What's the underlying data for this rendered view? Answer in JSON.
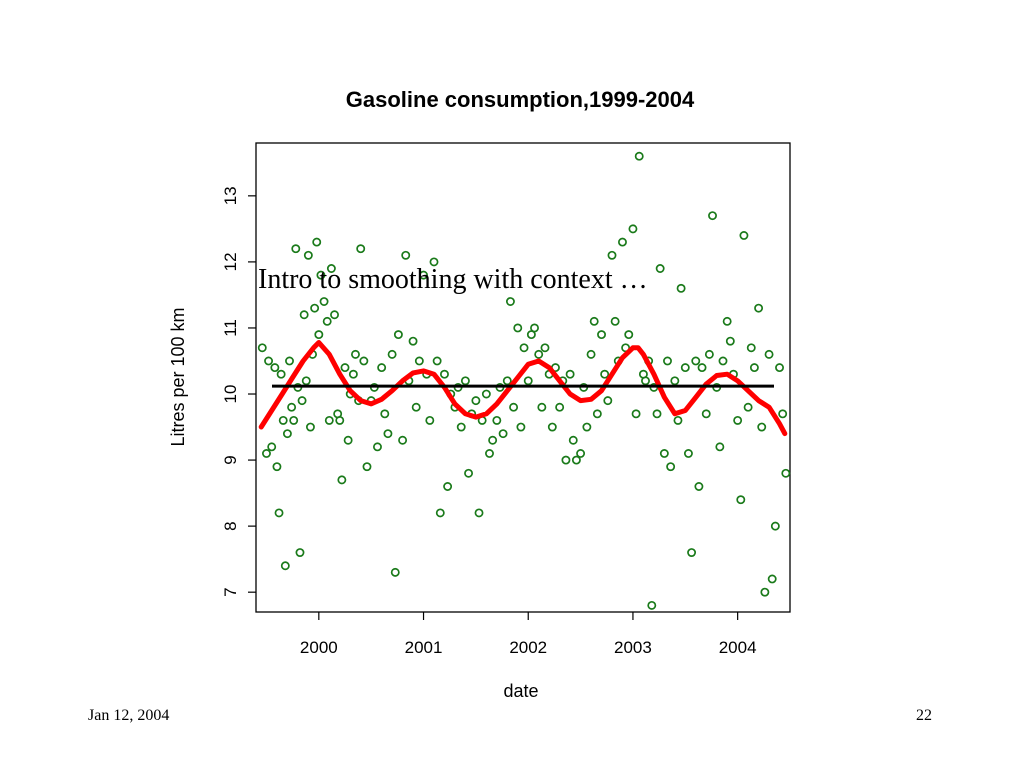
{
  "slide": {
    "title": "Intro to smoothing with context …",
    "footer_date": "Jan 12, 2004",
    "page_number": "22"
  },
  "chart_data": {
    "type": "scatter",
    "title": "Gasoline consumption,1999-2004",
    "xlabel": "date",
    "ylabel": "Litres per 100 km",
    "xlim": [
      1999.4,
      2004.5
    ],
    "ylim": [
      6.7,
      13.8
    ],
    "x_ticks": [
      2000,
      2001,
      2002,
      2003,
      2004
    ],
    "x_tick_labels": [
      "2000",
      "2001",
      "2002",
      "2003",
      "2004"
    ],
    "y_ticks": [
      7,
      8,
      9,
      10,
      11,
      12,
      13
    ],
    "y_tick_labels": [
      "7",
      "8",
      "9",
      "10",
      "11",
      "12",
      "13"
    ],
    "grid": false,
    "colors": {
      "points": "#1a7a1a",
      "smooth": "#ff0000",
      "mean": "#000000"
    },
    "series": [
      {
        "kind": "points",
        "x": [
          1999.46,
          1999.5,
          1999.52,
          1999.55,
          1999.58,
          1999.6,
          1999.62,
          1999.64,
          1999.66,
          1999.68,
          1999.7,
          1999.72,
          1999.74,
          1999.76,
          1999.78,
          1999.8,
          1999.82,
          1999.84,
          1999.86,
          1999.88,
          1999.9,
          1999.92,
          1999.94,
          1999.96,
          1999.98,
          2000.0,
          2000.02,
          2000.05,
          2000.08,
          2000.1,
          2000.12,
          2000.15,
          2000.18,
          2000.2,
          2000.22,
          2000.25,
          2000.28,
          2000.3,
          2000.33,
          2000.35,
          2000.38,
          2000.4,
          2000.43,
          2000.46,
          2000.5,
          2000.53,
          2000.56,
          2000.6,
          2000.63,
          2000.66,
          2000.7,
          2000.73,
          2000.76,
          2000.8,
          2000.83,
          2000.86,
          2000.9,
          2000.93,
          2000.96,
          2001.0,
          2001.03,
          2001.06,
          2001.1,
          2001.13,
          2001.16,
          2001.2,
          2001.23,
          2001.26,
          2001.3,
          2001.33,
          2001.36,
          2001.4,
          2001.43,
          2001.46,
          2001.5,
          2001.53,
          2001.56,
          2001.6,
          2001.63,
          2001.66,
          2001.7,
          2001.73,
          2001.76,
          2001.8,
          2001.83,
          2001.86,
          2001.9,
          2001.93,
          2001.96,
          2002.0,
          2002.03,
          2002.06,
          2002.1,
          2002.13,
          2002.16,
          2002.2,
          2002.23,
          2002.26,
          2002.3,
          2002.33,
          2002.36,
          2002.4,
          2002.43,
          2002.46,
          2002.5,
          2002.53,
          2002.56,
          2002.6,
          2002.63,
          2002.66,
          2002.7,
          2002.73,
          2002.76,
          2002.8,
          2002.83,
          2002.86,
          2002.9,
          2002.93,
          2002.96,
          2003.0,
          2003.03,
          2003.06,
          2003.1,
          2003.12,
          2003.15,
          2003.18,
          2003.2,
          2003.23,
          2003.26,
          2003.3,
          2003.33,
          2003.36,
          2003.4,
          2003.43,
          2003.46,
          2003.5,
          2003.53,
          2003.56,
          2003.6,
          2003.63,
          2003.66,
          2003.7,
          2003.73,
          2003.76,
          2003.8,
          2003.83,
          2003.86,
          2003.9,
          2003.93,
          2003.96,
          2004.0,
          2004.03,
          2004.06,
          2004.1,
          2004.13,
          2004.16,
          2004.2,
          2004.23,
          2004.26,
          2004.3,
          2004.33,
          2004.36,
          2004.4,
          2004.43,
          2004.46
        ],
        "y": [
          10.7,
          9.1,
          10.5,
          9.2,
          10.4,
          8.9,
          8.2,
          10.3,
          9.6,
          7.4,
          9.4,
          10.5,
          9.8,
          9.6,
          12.2,
          10.1,
          7.6,
          9.9,
          11.2,
          10.2,
          12.1,
          9.5,
          10.6,
          11.3,
          12.3,
          10.9,
          11.8,
          11.4,
          11.1,
          9.6,
          11.9,
          11.2,
          9.7,
          9.6,
          8.7,
          10.4,
          9.3,
          10.0,
          10.3,
          10.6,
          9.9,
          12.2,
          10.5,
          8.9,
          9.9,
          10.1,
          9.2,
          10.4,
          9.7,
          9.4,
          10.6,
          7.3,
          10.9,
          9.3,
          12.1,
          10.2,
          10.8,
          9.8,
          10.5,
          11.8,
          10.3,
          9.6,
          12.0,
          10.5,
          8.2,
          10.3,
          8.6,
          10.0,
          9.8,
          10.1,
          9.5,
          10.2,
          8.8,
          9.7,
          9.9,
          8.2,
          9.6,
          10.0,
          9.1,
          9.3,
          9.6,
          10.1,
          9.4,
          10.2,
          11.4,
          9.8,
          11.0,
          9.5,
          10.7,
          10.2,
          10.9,
          11.0,
          10.6,
          9.8,
          10.7,
          10.3,
          9.5,
          10.4,
          9.8,
          10.2,
          9.0,
          10.3,
          9.3,
          9.0,
          9.1,
          10.1,
          9.5,
          10.6,
          11.1,
          9.7,
          10.9,
          10.3,
          9.9,
          12.1,
          11.1,
          10.5,
          12.3,
          10.7,
          10.9,
          12.5,
          9.7,
          13.6,
          10.3,
          10.2,
          10.5,
          6.8,
          10.1,
          9.7,
          11.9,
          9.1,
          10.5,
          8.9,
          10.2,
          9.6,
          11.6,
          10.4,
          9.1,
          7.6,
          10.5,
          8.6,
          10.4,
          9.7,
          10.6,
          12.7,
          10.1,
          9.2,
          10.5,
          11.1,
          10.8,
          10.3,
          9.6,
          8.4,
          12.4,
          9.8,
          10.7,
          10.4,
          11.3,
          9.5,
          7.0,
          10.6,
          7.2,
          8.0,
          10.4,
          9.7,
          8.8
        ]
      },
      {
        "kind": "line",
        "name": "",
        "color": "#ff0000",
        "x": [
          1999.45,
          1999.55,
          1999.65,
          1999.75,
          1999.85,
          1999.95,
          2000.0,
          2000.1,
          2000.2,
          2000.3,
          2000.4,
          2000.5,
          2000.6,
          2000.7,
          2000.8,
          2000.9,
          2001.0,
          2001.1,
          2001.2,
          2001.3,
          2001.4,
          2001.5,
          2001.6,
          2001.7,
          2001.8,
          2001.9,
          2002.0,
          2002.1,
          2002.2,
          2002.3,
          2002.4,
          2002.5,
          2002.6,
          2002.7,
          2002.8,
          2002.9,
          2003.0,
          2003.05,
          2003.1,
          2003.2,
          2003.3,
          2003.4,
          2003.5,
          2003.6,
          2003.7,
          2003.8,
          2003.9,
          2004.0,
          2004.1,
          2004.2,
          2004.3,
          2004.4,
          2004.45
        ],
        "y": [
          9.5,
          9.75,
          10.0,
          10.25,
          10.5,
          10.7,
          10.78,
          10.6,
          10.3,
          10.05,
          9.9,
          9.85,
          9.92,
          10.05,
          10.2,
          10.32,
          10.35,
          10.3,
          10.1,
          9.85,
          9.7,
          9.65,
          9.7,
          9.85,
          10.05,
          10.25,
          10.45,
          10.5,
          10.4,
          10.2,
          10.0,
          9.9,
          9.92,
          10.05,
          10.3,
          10.55,
          10.7,
          10.7,
          10.6,
          10.3,
          9.95,
          9.7,
          9.75,
          9.95,
          10.15,
          10.28,
          10.3,
          10.2,
          10.05,
          9.9,
          9.8,
          9.55,
          9.4
        ]
      },
      {
        "kind": "hline",
        "name": "",
        "color": "#000000",
        "y": 10.12
      }
    ]
  }
}
